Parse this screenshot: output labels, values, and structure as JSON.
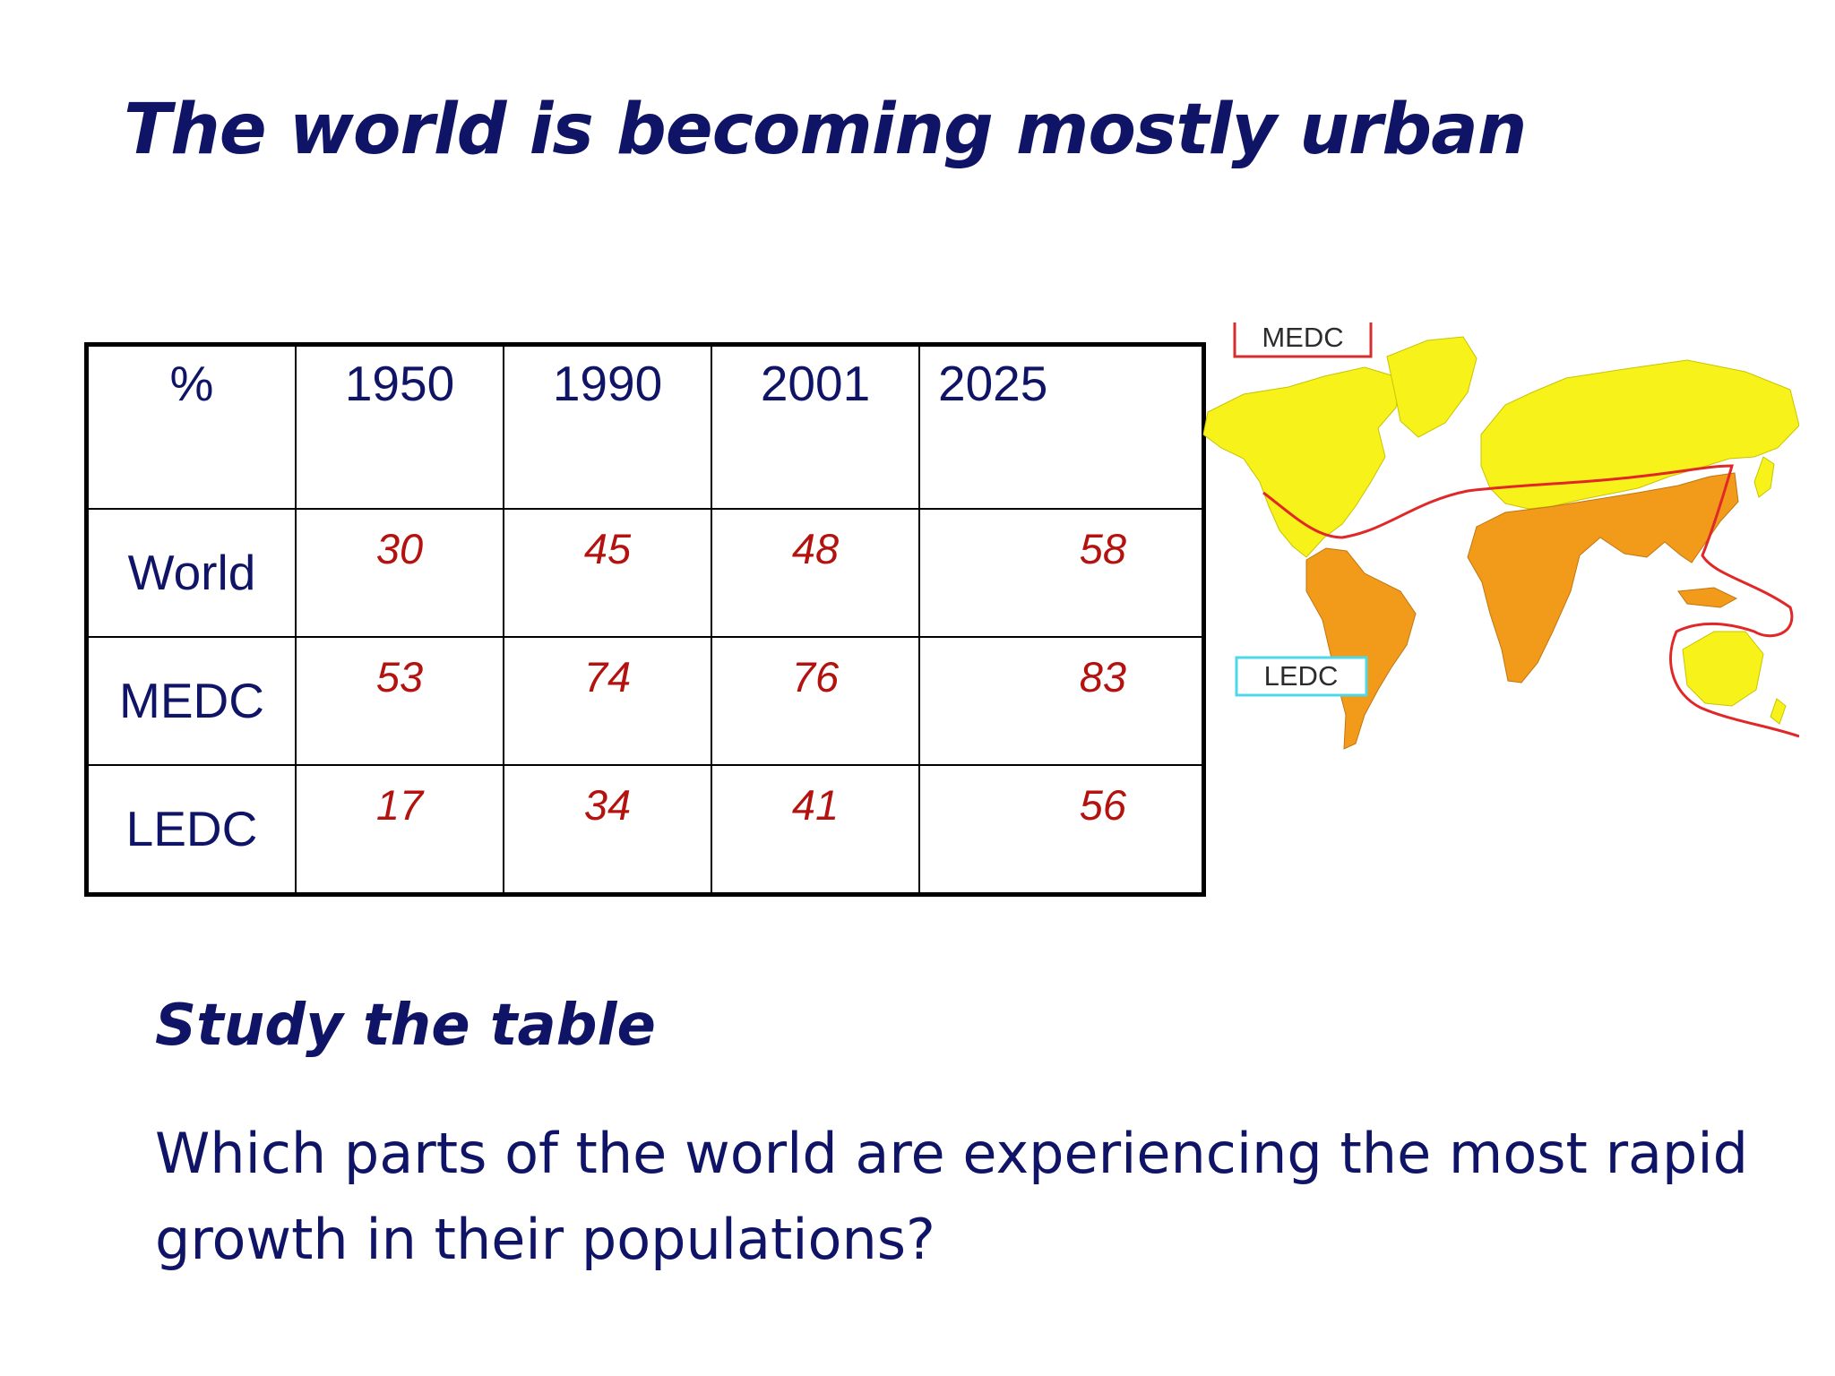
{
  "title": "The world is becoming mostly urban",
  "table": {
    "corner": "%",
    "years": [
      "1950",
      "1990",
      "2001",
      "2025"
    ],
    "rows": [
      {
        "region": "World",
        "values": [
          "30",
          "45",
          "48",
          "58"
        ]
      },
      {
        "region": "MEDC",
        "values": [
          "53",
          "74",
          "76",
          "83"
        ]
      },
      {
        "region": "LEDC",
        "values": [
          "17",
          "34",
          "41",
          "56"
        ]
      }
    ]
  },
  "map": {
    "medc_label": "MEDC",
    "ledc_label": "LEDC",
    "colors": {
      "medc_land": "#f7f21a",
      "ledc_land": "#f29a1a",
      "divider": "#e02828",
      "medc_box": "#d62d2d",
      "ledc_box": "#4fd8e8"
    }
  },
  "subheading": "Study the table",
  "question": "Which parts of the world are experiencing the most rapid growth in their populations?"
}
